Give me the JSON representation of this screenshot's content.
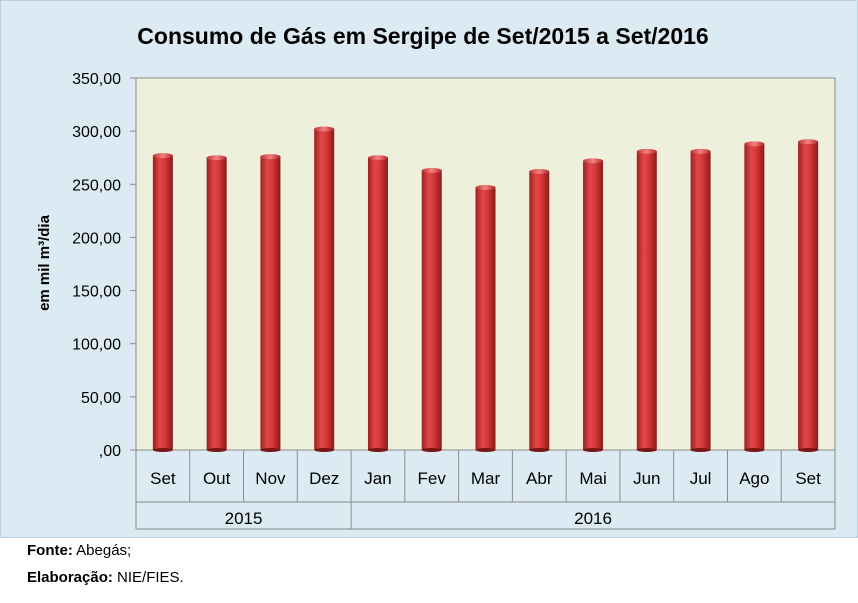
{
  "chart_data": {
    "type": "bar",
    "title": "Consumo de Gás em Sergipe de Set/2015 a Set/2016",
    "ylabel": "em mil m³/dia",
    "xlabel": "",
    "categories": [
      "Set",
      "Out",
      "Nov",
      "Dez",
      "Jan",
      "Fev",
      "Mar",
      "Abr",
      "Mai",
      "Jun",
      "Jul",
      "Ago",
      "Set"
    ],
    "values": [
      277,
      275,
      276,
      302,
      275,
      263,
      247,
      262,
      272,
      281,
      281,
      288,
      290
    ],
    "year_groups": [
      {
        "label": "2015",
        "count": 4
      },
      {
        "label": "2016",
        "count": 9
      }
    ],
    "yticks": [
      ",00",
      "50,00",
      "100,00",
      "150,00",
      "200,00",
      "250,00",
      "300,00",
      "350,00"
    ],
    "ylim": [
      0,
      350
    ],
    "ystep": 50,
    "grid": false,
    "legend": "none",
    "colors": {
      "bar": "#d93a3a",
      "bar_dark": "#8c1a1a",
      "bar_light": "#f07070",
      "plot_bg": "#eef0dc",
      "outer_bg": "#dcebf3",
      "axis": "#8a8a8a"
    }
  },
  "footer": {
    "source_label": "Fonte:",
    "source_value": " Abegás;",
    "credit_label": "Elaboração:",
    "credit_value": " NIE/FIES."
  }
}
